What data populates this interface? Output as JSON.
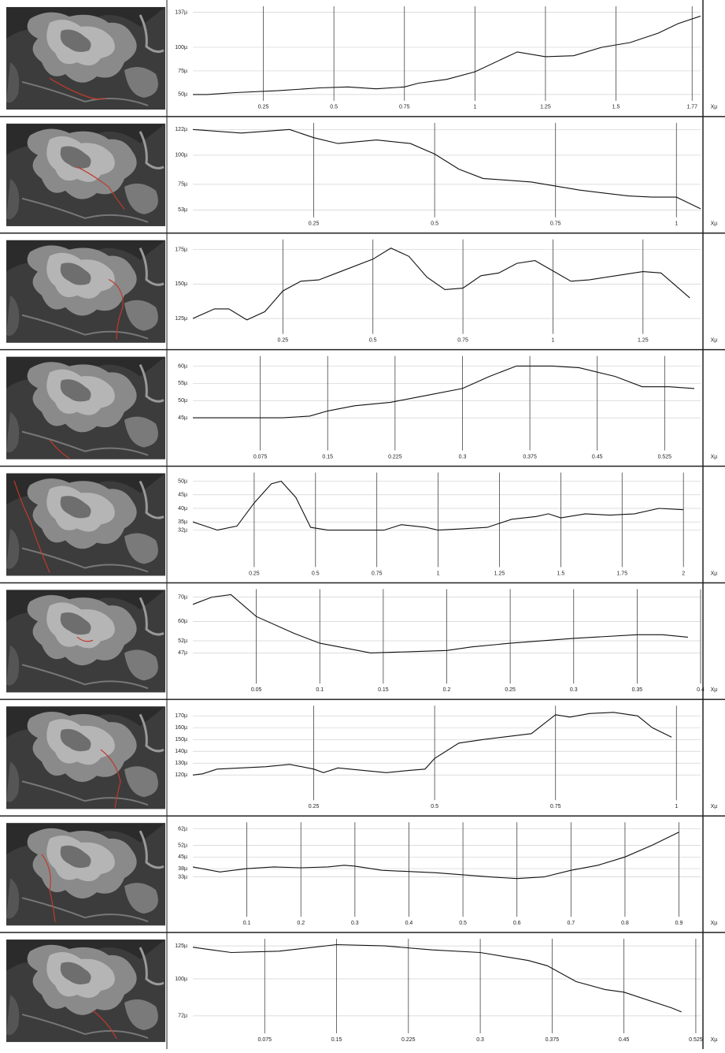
{
  "chart_data": [
    {
      "type": "line",
      "xlabel": "Xµ",
      "color": "#111111",
      "x": [
        0,
        0.05,
        0.15,
        0.3,
        0.45,
        0.55,
        0.65,
        0.75,
        0.8,
        0.9,
        1.0,
        1.1,
        1.15,
        1.25,
        1.35,
        1.45,
        1.55,
        1.65,
        1.72,
        1.8
      ],
      "values": [
        50,
        50,
        52,
        54,
        57,
        58,
        56,
        58,
        62,
        66,
        74,
        88,
        95,
        90,
        91,
        100,
        105,
        115,
        125,
        133
      ],
      "xlim": [
        0,
        1.8
      ],
      "ylim": [
        45,
        140
      ],
      "xticks": [
        0.25,
        0.5,
        0.75,
        1,
        1.25,
        1.5,
        1.77
      ],
      "yticks": [
        {
          "value": 137,
          "label": "137µ"
        },
        {
          "value": 100,
          "label": "100µ"
        },
        {
          "value": 75,
          "label": "75µ"
        },
        {
          "value": 50,
          "label": "50µ"
        }
      ]
    },
    {
      "type": "line",
      "xlabel": "Xµ",
      "color": "#111111",
      "x": [
        0,
        0.1,
        0.2,
        0.25,
        0.3,
        0.38,
        0.45,
        0.5,
        0.55,
        0.6,
        0.7,
        0.8,
        0.9,
        0.95,
        1.0,
        1.05
      ],
      "values": [
        122,
        119,
        122,
        115,
        110,
        113,
        110,
        101,
        88,
        80,
        77,
        70,
        65,
        64,
        64,
        54
      ],
      "xlim": [
        0,
        1.05
      ],
      "ylim": [
        48,
        125
      ],
      "xticks": [
        0.25,
        0.5,
        0.75,
        1
      ],
      "yticks": [
        {
          "value": 122,
          "label": "122µ"
        },
        {
          "value": 100,
          "label": "100µ"
        },
        {
          "value": 75,
          "label": "75µ"
        },
        {
          "value": 53,
          "label": "53µ"
        }
      ]
    },
    {
      "type": "line",
      "xlabel": "Xµ",
      "color": "#111111",
      "x": [
        0,
        0.06,
        0.1,
        0.15,
        0.2,
        0.25,
        0.3,
        0.35,
        0.4,
        0.5,
        0.55,
        0.6,
        0.65,
        0.7,
        0.75,
        0.8,
        0.85,
        0.9,
        0.95,
        1.05,
        1.1,
        1.2,
        1.25,
        1.3,
        1.38
      ],
      "values": [
        125,
        132,
        132,
        124,
        130,
        145,
        152,
        153,
        158,
        168,
        176,
        170,
        155,
        146,
        147,
        156,
        158,
        165,
        167,
        152,
        153,
        157,
        159,
        158,
        140
      ],
      "xlim": [
        0,
        1.41
      ],
      "ylim": [
        115,
        180
      ],
      "xticks": [
        0.25,
        0.5,
        0.75,
        1,
        1.25
      ],
      "yticks": [
        {
          "value": 175,
          "label": "175µ"
        },
        {
          "value": 150,
          "label": "150µ"
        },
        {
          "value": 125,
          "label": "125µ"
        }
      ]
    },
    {
      "type": "line",
      "xlabel": "Xµ",
      "color": "#111111",
      "x": [
        0,
        0.05,
        0.1,
        0.13,
        0.15,
        0.18,
        0.22,
        0.26,
        0.3,
        0.33,
        0.36,
        0.4,
        0.43,
        0.47,
        0.5,
        0.53,
        0.558
      ],
      "values": [
        45,
        45,
        45,
        45.5,
        47,
        48.5,
        49.5,
        51.5,
        53.5,
        57,
        60,
        60,
        59.5,
        57,
        54,
        54,
        53.5
      ],
      "xlim": [
        0,
        0.565
      ],
      "ylim": [
        36,
        62
      ],
      "xticks": [
        0.075,
        0.15,
        0.225,
        0.3,
        0.375,
        0.45,
        0.525
      ],
      "yticks": [
        {
          "value": 60,
          "label": "60µ"
        },
        {
          "value": 55,
          "label": "55µ"
        },
        {
          "value": 50,
          "label": "50µ"
        },
        {
          "value": 45,
          "label": "45µ"
        }
      ]
    },
    {
      "type": "line",
      "xlabel": "Xµ",
      "color": "#111111",
      "x": [
        0,
        0.1,
        0.18,
        0.25,
        0.32,
        0.36,
        0.42,
        0.48,
        0.55,
        0.7,
        0.78,
        0.85,
        0.95,
        1.0,
        1.1,
        1.2,
        1.3,
        1.4,
        1.45,
        1.5,
        1.6,
        1.7,
        1.8,
        1.9,
        2.0
      ],
      "values": [
        35,
        32,
        33.5,
        42,
        49,
        50,
        44,
        33,
        32,
        32,
        32,
        34,
        33,
        32,
        32.5,
        33,
        36,
        37,
        38,
        36.5,
        38,
        37.5,
        38,
        40,
        39.5
      ],
      "xlim": [
        0,
        2.07
      ],
      "ylim": [
        19,
        52
      ],
      "xticks": [
        0.25,
        0.5,
        0.75,
        1,
        1.25,
        1.5,
        1.75,
        2
      ],
      "yticks": [
        {
          "value": 50,
          "label": "50µ"
        },
        {
          "value": 45,
          "label": "45µ"
        },
        {
          "value": 40,
          "label": "40µ"
        },
        {
          "value": 35,
          "label": "35µ"
        },
        {
          "value": 32,
          "label": "32µ"
        }
      ]
    },
    {
      "type": "line",
      "xlabel": "Xµ",
      "color": "#111111",
      "x": [
        0,
        0.015,
        0.03,
        0.05,
        0.08,
        0.1,
        0.12,
        0.14,
        0.17,
        0.2,
        0.22,
        0.25,
        0.3,
        0.35,
        0.37,
        0.39
      ],
      "values": [
        67,
        70,
        71,
        62,
        55,
        51,
        49,
        47,
        47.5,
        48,
        49.5,
        51,
        53,
        54.5,
        54.5,
        53.5
      ],
      "xlim": [
        0,
        0.4
      ],
      "ylim": [
        35,
        72
      ],
      "xticks": [
        0.05,
        0.1,
        0.15,
        0.2,
        0.25,
        0.3,
        0.35,
        0.4
      ],
      "yticks": [
        {
          "value": 70,
          "label": "70µ"
        },
        {
          "value": 60,
          "label": "60µ"
        },
        {
          "value": 52,
          "label": "52µ"
        },
        {
          "value": 47,
          "label": "47µ"
        }
      ]
    },
    {
      "type": "line",
      "xlabel": "Xµ",
      "color": "#111111",
      "x": [
        0,
        0.02,
        0.05,
        0.15,
        0.2,
        0.25,
        0.27,
        0.3,
        0.35,
        0.4,
        0.45,
        0.48,
        0.5,
        0.55,
        0.6,
        0.7,
        0.75,
        0.78,
        0.82,
        0.87,
        0.92,
        0.95,
        0.99
      ],
      "values": [
        120,
        121,
        125,
        127,
        129,
        125,
        122,
        126,
        124,
        122,
        124,
        125,
        134,
        147,
        150,
        155,
        171,
        169,
        172,
        173,
        170,
        160,
        152
      ],
      "xlim": [
        0,
        1.05
      ],
      "ylim": [
        100,
        176
      ],
      "xticks": [
        0.25,
        0.5,
        0.75,
        1
      ],
      "yticks": [
        {
          "value": 170,
          "label": "170µ"
        },
        {
          "value": 160,
          "label": "160µ"
        },
        {
          "value": 150,
          "label": "150µ"
        },
        {
          "value": 140,
          "label": "140µ"
        },
        {
          "value": 130,
          "label": "130µ"
        },
        {
          "value": 120,
          "label": "120µ"
        }
      ]
    },
    {
      "type": "line",
      "xlabel": "Xµ",
      "color": "#111111",
      "x": [
        0,
        0.05,
        0.1,
        0.15,
        0.2,
        0.25,
        0.28,
        0.3,
        0.35,
        0.45,
        0.55,
        0.6,
        0.65,
        0.7,
        0.75,
        0.8,
        0.85,
        0.9
      ],
      "values": [
        39,
        36,
        38,
        39,
        38.5,
        39,
        40,
        39.5,
        37,
        35.5,
        33,
        32,
        33,
        37,
        40,
        45,
        52,
        60
      ],
      "xlim": [
        0,
        0.94
      ],
      "ylim": [
        10,
        64
      ],
      "xticks": [
        0.1,
        0.2,
        0.3,
        0.4,
        0.5,
        0.6,
        0.7,
        0.8,
        0.9
      ],
      "yticks": [
        {
          "value": 62,
          "label": "62µ"
        },
        {
          "value": 52,
          "label": "52µ"
        },
        {
          "value": 45,
          "label": "45µ"
        },
        {
          "value": 38,
          "label": "38µ"
        },
        {
          "value": 33,
          "label": "33µ"
        }
      ]
    },
    {
      "type": "line",
      "xlabel": "Xµ",
      "color": "#111111",
      "x": [
        0,
        0.02,
        0.04,
        0.09,
        0.15,
        0.2,
        0.25,
        0.3,
        0.35,
        0.37,
        0.4,
        0.43,
        0.45,
        0.5,
        0.51
      ],
      "values": [
        124,
        122,
        120,
        121,
        126,
        125,
        122,
        120,
        114,
        110,
        98,
        92,
        90,
        78,
        75
      ],
      "xlim": [
        0,
        0.53
      ],
      "ylim": [
        60,
        128
      ],
      "xticks": [
        0.075,
        0.15,
        0.225,
        0.3,
        0.375,
        0.45,
        0.525
      ],
      "yticks": [
        {
          "value": 125,
          "label": "125µ"
        },
        {
          "value": 100,
          "label": "100µ"
        },
        {
          "value": 72,
          "label": "72µ"
        }
      ]
    }
  ]
}
